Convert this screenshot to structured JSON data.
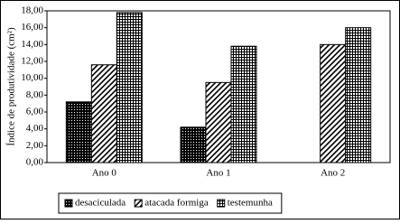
{
  "chart_data": {
    "type": "bar",
    "y_label": "Índice de produtividade  (cm²)",
    "categories": [
      "Ano 0",
      "Ano 1",
      "Ano 2"
    ],
    "series": [
      {
        "name": "desaciculada",
        "color": "#000000",
        "pattern": "dots",
        "values": [
          7.2,
          4.2,
          null
        ]
      },
      {
        "name": "atacada formiga",
        "color": "#000000",
        "pattern": "diagonal",
        "values": [
          11.6,
          9.5,
          14.0
        ]
      },
      {
        "name": "testemunha",
        "color": "#000000",
        "pattern": "grid",
        "values": [
          17.8,
          13.8,
          16.0
        ]
      }
    ],
    "ylim": [
      0,
      18
    ],
    "yticks": [
      {
        "value": 0,
        "label": "0,00"
      },
      {
        "value": 2,
        "label": "2,00"
      },
      {
        "value": 4,
        "label": "4,00"
      },
      {
        "value": 6,
        "label": "6,00"
      },
      {
        "value": 8,
        "label": "8,00"
      },
      {
        "value": 10,
        "label": "10,00"
      },
      {
        "value": 12,
        "label": "12,00"
      },
      {
        "value": 14,
        "label": "14,00"
      },
      {
        "value": 16,
        "label": "16,00"
      },
      {
        "value": 18,
        "label": "18,00"
      }
    ],
    "grid": false,
    "legend": "bottom"
  }
}
